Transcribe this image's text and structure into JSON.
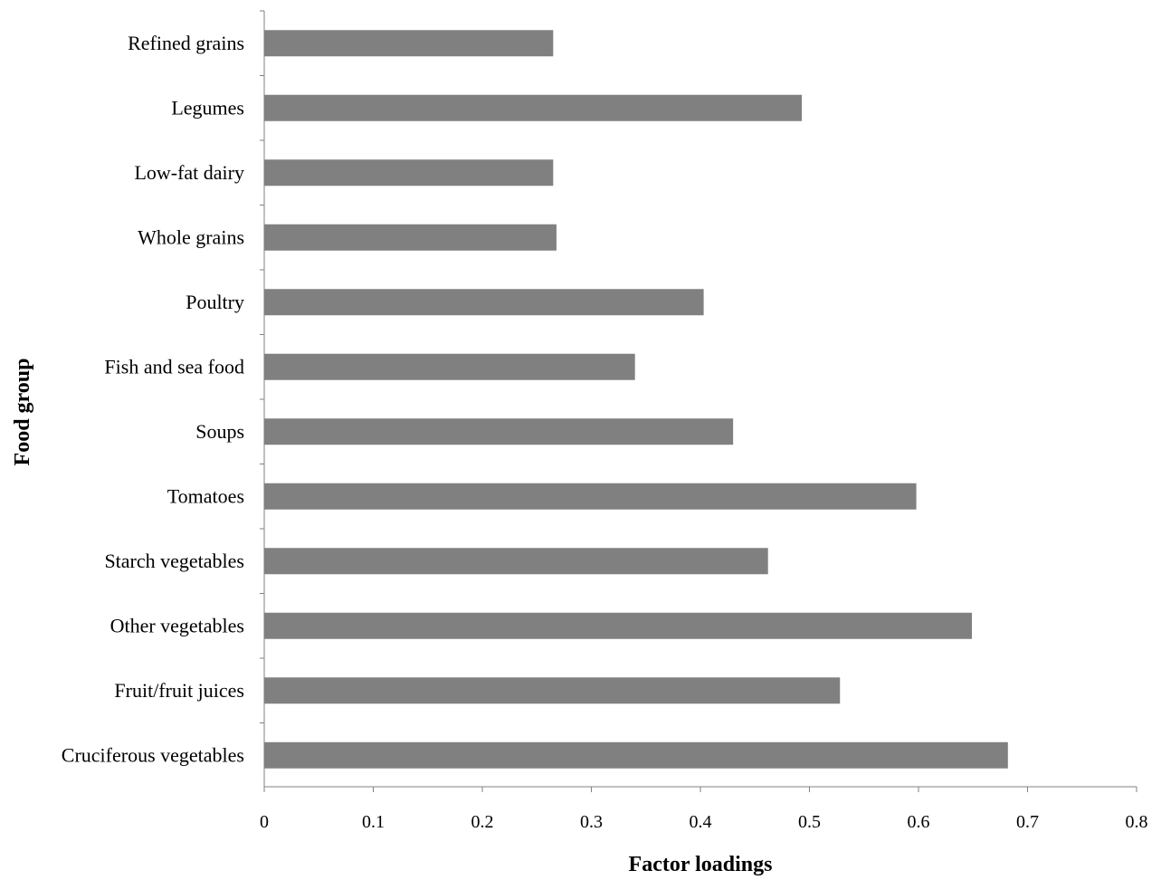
{
  "chart_data": {
    "type": "bar",
    "orientation": "horizontal",
    "title": "",
    "xlabel": "Factor loadings",
    "ylabel": "Food group",
    "categories": [
      "Refined grains",
      "Legumes",
      "Low-fat dairy",
      "Whole grains",
      "Poultry",
      "Fish and sea food",
      "Soups",
      "Tomatoes",
      "Starch vegetables",
      "Other vegetables",
      "Fruit/fruit juices",
      "Cruciferous vegetables"
    ],
    "values": [
      0.265,
      0.493,
      0.265,
      0.268,
      0.403,
      0.34,
      0.43,
      0.598,
      0.462,
      0.649,
      0.528,
      0.682
    ],
    "xlim": [
      0,
      0.8
    ],
    "xticks": [
      "0",
      "0.1",
      "0.2",
      "0.3",
      "0.4",
      "0.5",
      "0.6",
      "0.7",
      "0.8"
    ],
    "grid": false,
    "legend": "none",
    "bar_color": "#808080",
    "axis_color": "#808080"
  }
}
